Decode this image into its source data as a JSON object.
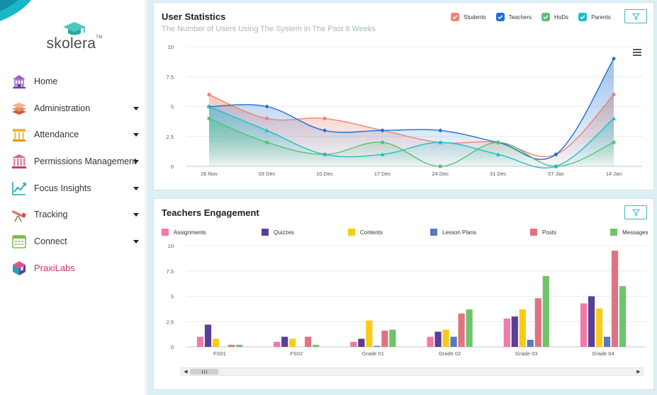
{
  "brand": {
    "name": "skolera",
    "tm": "TM"
  },
  "sidebar": {
    "items": [
      {
        "label": "Home",
        "icon": "home-icon",
        "has_caret": false
      },
      {
        "label": "Administration",
        "icon": "layers-icon",
        "has_caret": true
      },
      {
        "label": "Attendance",
        "icon": "building-icon",
        "has_caret": true
      },
      {
        "label": "Permissions Management",
        "icon": "bank-icon",
        "has_caret": true
      },
      {
        "label": "Focus Insights",
        "icon": "trend-chart-icon",
        "has_caret": true
      },
      {
        "label": "Tracking",
        "icon": "telescope-icon",
        "has_caret": true
      },
      {
        "label": "Connect",
        "icon": "calendar-icon",
        "has_caret": true
      },
      {
        "label": "PraxiLabs",
        "icon": "cube-icon",
        "has_caret": false
      }
    ]
  },
  "colors": {
    "students": "#f0826f",
    "teachers": "#1d6fd0",
    "hods": "#5bbf73",
    "parents": "#19c1c8",
    "assignments": "#f07aa8",
    "quizzes": "#5a3f97",
    "contents": "#f8cc14",
    "lesson_plans": "#5b79c0",
    "posts": "#e07381",
    "messages": "#6ec46a",
    "accent": "#3fb5c8"
  },
  "user_stats": {
    "title": "User Statistics",
    "subtitle": "The Number of Users Using The System in The Past 8 Weeks",
    "legend": [
      "Students",
      "Teachers",
      "HoDs",
      "Parents"
    ]
  },
  "engagement": {
    "title": "Teachers Engagement",
    "legend": [
      "Assignments",
      "Quizzes",
      "Contents",
      "Lesson Plans",
      "Posts",
      "Messages"
    ]
  },
  "chart_data": [
    {
      "type": "area",
      "title": "User Statistics",
      "subtitle": "The Number of Users Using The System in The Past 8 Weeks",
      "categories": [
        "26 Nov",
        "03 Dec",
        "10 Dec",
        "17 Dec",
        "24 Dec",
        "31 Dec",
        "07 Jan",
        "14 Jan"
      ],
      "yticks": [
        "0",
        "2.5",
        "5",
        "7.5",
        "10"
      ],
      "ylim": [
        0,
        10
      ],
      "grid": true,
      "legend_position": "top-right",
      "series": [
        {
          "name": "Students",
          "values": [
            6,
            4,
            4,
            3,
            2,
            2,
            1,
            6
          ]
        },
        {
          "name": "Teachers",
          "values": [
            5,
            5,
            3,
            3,
            3,
            2,
            1,
            9
          ]
        },
        {
          "name": "HoDs",
          "values": [
            4,
            2,
            1,
            2,
            0,
            2,
            0,
            2
          ]
        },
        {
          "name": "Parents",
          "values": [
            5,
            3,
            1,
            1,
            2,
            1,
            0,
            4
          ]
        }
      ]
    },
    {
      "type": "bar",
      "title": "Teachers Engagement",
      "categories": [
        "FS01",
        "FS02",
        "Grade 01",
        "Grade 02",
        "Grade 03",
        "Grade 04"
      ],
      "yticks": [
        "0",
        "2.5",
        "5",
        "7.5",
        "10"
      ],
      "ylim": [
        0,
        10
      ],
      "grid": true,
      "legend_position": "top",
      "series": [
        {
          "name": "Assignments",
          "values": [
            1.0,
            0.5,
            0.5,
            1.0,
            2.8,
            4.3
          ]
        },
        {
          "name": "Quizzes",
          "values": [
            2.2,
            1.0,
            0.8,
            1.5,
            3.0,
            5.0
          ]
        },
        {
          "name": "Contents",
          "values": [
            0.8,
            0.8,
            2.6,
            1.7,
            3.7,
            3.8
          ]
        },
        {
          "name": "Lesson Plans",
          "values": [
            0.0,
            0.0,
            0.1,
            1.0,
            0.7,
            1.0
          ]
        },
        {
          "name": "Posts",
          "values": [
            0.2,
            1.0,
            1.6,
            3.3,
            4.8,
            9.5
          ]
        },
        {
          "name": "Messages",
          "values": [
            0.2,
            0.2,
            1.7,
            3.7,
            7.0,
            6.0
          ]
        }
      ]
    }
  ]
}
